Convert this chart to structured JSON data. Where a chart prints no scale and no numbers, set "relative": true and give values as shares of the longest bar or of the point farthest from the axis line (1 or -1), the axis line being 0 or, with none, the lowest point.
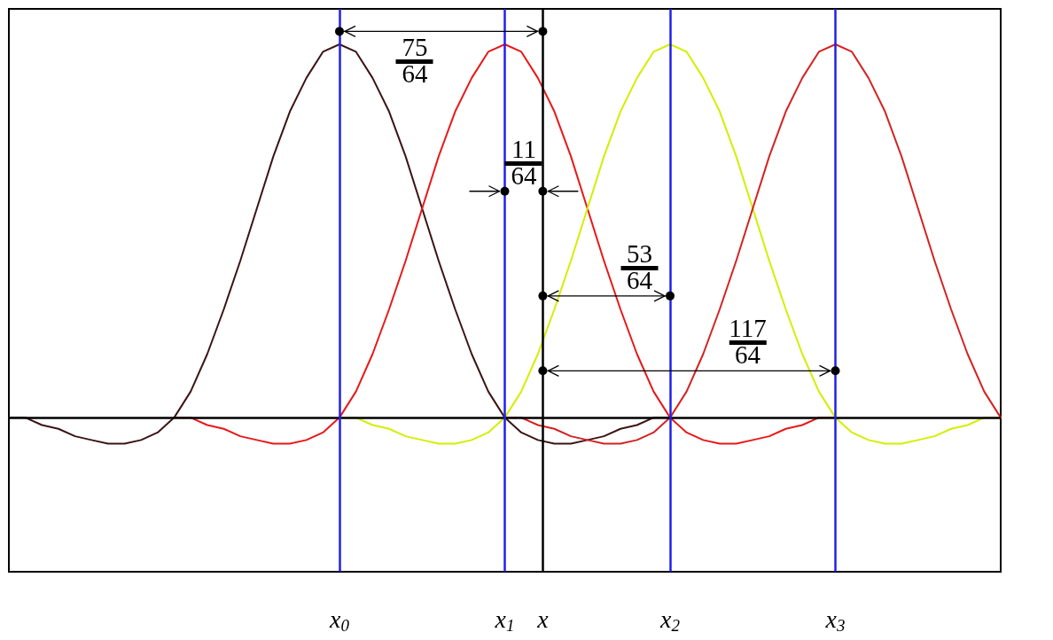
{
  "chart_data": {
    "type": "line",
    "relative": true,
    "xlim": [
      -2,
      4
    ],
    "xticks": [
      {
        "value": 0,
        "label": "x$_{0}$"
      },
      {
        "value": 1,
        "label": "x$_{1}$"
      },
      {
        "value": 1.23,
        "label": "x"
      },
      {
        "value": 2,
        "label": "x$_{2}$"
      },
      {
        "value": 3,
        "label": "x$_{3}$"
      }
    ],
    "series": [
      {
        "color": "#3c1414",
        "x": [
          -2,
          -1.9,
          -1.8,
          -1.7,
          -1.6,
          -1.5,
          -1.4,
          -1.3,
          -1.2,
          -1.1,
          -1,
          -0.9,
          -0.8,
          -0.7,
          -0.6,
          -0.5,
          -0.4,
          -0.3,
          -0.2,
          -0.1,
          0,
          0.1,
          0.2,
          0.3,
          0.4,
          0.5,
          0.6,
          0.7,
          0.8,
          0.9,
          1,
          1.1,
          1.2,
          1.3,
          1.4,
          1.5,
          1.6,
          1.7,
          1.8,
          1.9,
          2
        ],
        "values": [
          0,
          0,
          -0.02,
          -0.03,
          -0.05,
          -0.06,
          -0.07,
          -0.07,
          -0.06,
          -0.04,
          0,
          0.07,
          0.17,
          0.29,
          0.42,
          0.56,
          0.7,
          0.82,
          0.91,
          0.98,
          1,
          0.98,
          0.91,
          0.82,
          0.7,
          0.56,
          0.42,
          0.29,
          0.17,
          0.07,
          0,
          -0.04,
          -0.06,
          -0.07,
          -0.07,
          -0.06,
          -0.05,
          -0.03,
          -0.02,
          0,
          0
        ]
      },
      {
        "color": "#e81818",
        "x": [
          -1,
          -0.9,
          -0.8,
          -0.7,
          -0.6,
          -0.5,
          -0.4,
          -0.3,
          -0.2,
          -0.1,
          0,
          0.1,
          0.2,
          0.3,
          0.4,
          0.5,
          0.6,
          0.7,
          0.8,
          0.9,
          1,
          1.1,
          1.2,
          1.3,
          1.4,
          1.5,
          1.6,
          1.7,
          1.8,
          1.9,
          2,
          2.1,
          2.2,
          2.3,
          2.4,
          2.5,
          2.6,
          2.7,
          2.8,
          2.9,
          3
        ],
        "values": [
          0,
          0,
          -0.02,
          -0.03,
          -0.05,
          -0.06,
          -0.07,
          -0.07,
          -0.06,
          -0.04,
          0,
          0.07,
          0.17,
          0.29,
          0.42,
          0.56,
          0.7,
          0.82,
          0.91,
          0.98,
          1,
          0.98,
          0.91,
          0.82,
          0.7,
          0.56,
          0.42,
          0.29,
          0.17,
          0.07,
          0,
          -0.04,
          -0.06,
          -0.07,
          -0.07,
          -0.06,
          -0.05,
          -0.03,
          -0.02,
          0,
          0
        ]
      },
      {
        "color": "#d4ee00",
        "x": [
          0,
          0.1,
          0.2,
          0.3,
          0.4,
          0.5,
          0.6,
          0.7,
          0.8,
          0.9,
          1,
          1.1,
          1.2,
          1.3,
          1.4,
          1.5,
          1.6,
          1.7,
          1.8,
          1.9,
          2,
          2.1,
          2.2,
          2.3,
          2.4,
          2.5,
          2.6,
          2.7,
          2.8,
          2.9,
          3,
          3.1,
          3.2,
          3.3,
          3.4,
          3.5,
          3.6,
          3.7,
          3.8,
          3.9,
          4
        ],
        "values": [
          0,
          0,
          -0.02,
          -0.03,
          -0.05,
          -0.06,
          -0.07,
          -0.07,
          -0.06,
          -0.04,
          0,
          0.07,
          0.17,
          0.29,
          0.42,
          0.56,
          0.7,
          0.82,
          0.91,
          0.98,
          1,
          0.98,
          0.91,
          0.82,
          0.7,
          0.56,
          0.42,
          0.29,
          0.17,
          0.07,
          0,
          -0.04,
          -0.06,
          -0.07,
          -0.07,
          -0.06,
          -0.05,
          -0.03,
          -0.02,
          0,
          0
        ]
      },
      {
        "color": "#d42222",
        "x": [
          1,
          1.1,
          1.2,
          1.3,
          1.4,
          1.5,
          1.6,
          1.7,
          1.8,
          1.9,
          2,
          2.1,
          2.2,
          2.3,
          2.4,
          2.5,
          2.6,
          2.7,
          2.8,
          2.9,
          3,
          3.1,
          3.2,
          3.3,
          3.4,
          3.5,
          3.6,
          3.7,
          3.8,
          3.9,
          4
        ],
        "values": [
          0,
          0,
          -0.02,
          -0.03,
          -0.05,
          -0.06,
          -0.07,
          -0.07,
          -0.06,
          -0.04,
          0,
          0.07,
          0.17,
          0.29,
          0.42,
          0.56,
          0.7,
          0.82,
          0.91,
          0.98,
          1,
          0.98,
          0.91,
          0.82,
          0.7,
          0.56,
          0.42,
          0.29,
          0.17,
          0.07,
          0
        ]
      }
    ],
    "ref_lines": [
      {
        "axis": "x",
        "value": 0,
        "color": "#2020ee"
      },
      {
        "axis": "x",
        "value": 1,
        "color": "#2020ee"
      },
      {
        "axis": "x",
        "value": 2,
        "color": "#2020ee"
      },
      {
        "axis": "x",
        "value": 3,
        "color": "#2020ee"
      },
      {
        "axis": "x",
        "value": 1.23,
        "color": "#000000"
      },
      {
        "axis": "y",
        "value": 0,
        "color": "#000000"
      }
    ],
    "annotations": [
      "75\n64",
      "11\n64",
      "53\n64",
      "117\n64"
    ]
  }
}
